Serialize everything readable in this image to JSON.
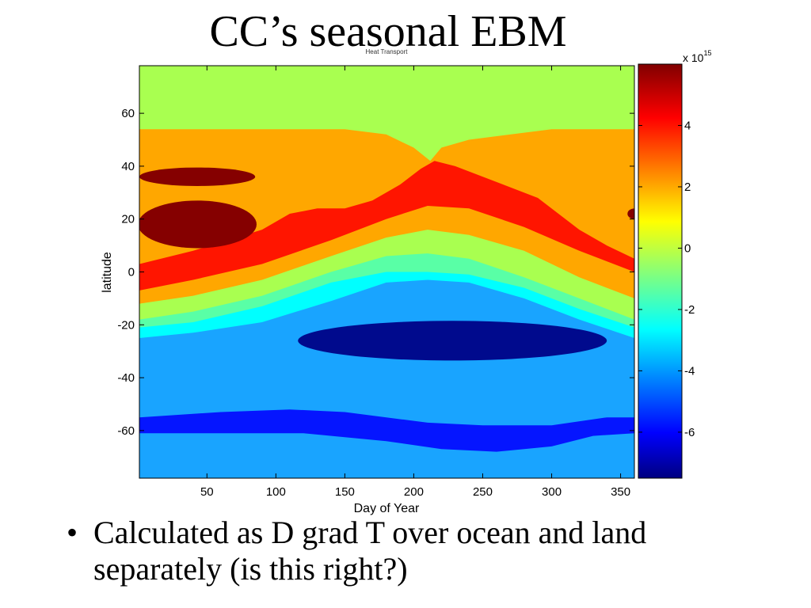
{
  "slide": {
    "title": "CC’s seasonal EBM",
    "bullet_char": "•",
    "bullets": [
      "Calculated as D grad T over ocean and land separately (is this right?)"
    ]
  },
  "chart_data": {
    "type": "heatmap",
    "title": "Heat Transport",
    "xlabel": "Day of Year",
    "ylabel": "latitude",
    "xlim": [
      1,
      360
    ],
    "ylim": [
      -78,
      78
    ],
    "xticks": [
      50,
      100,
      150,
      200,
      250,
      300,
      350
    ],
    "yticks": [
      -60,
      -40,
      -20,
      0,
      20,
      40,
      60
    ],
    "colorbar": {
      "range": [
        -7.5,
        6
      ],
      "ticks": [
        -6,
        -4,
        -2,
        0,
        2,
        4
      ],
      "exponent_label": "x 10",
      "exponent": "15",
      "colormap": "jet"
    },
    "bands": [
      {
        "level": 0.75,
        "color": "#a9ff50",
        "boundary": [
          [
            1,
            66
          ],
          [
            360,
            66
          ]
        ]
      },
      {
        "level": 2.75,
        "color": "#ffa700",
        "boundary": [
          [
            1,
            54
          ],
          [
            100,
            54
          ],
          [
            150,
            54
          ],
          [
            180,
            52
          ],
          [
            200,
            47
          ],
          [
            212,
            42
          ],
          [
            220,
            47
          ],
          [
            240,
            50
          ],
          [
            300,
            54
          ],
          [
            360,
            54
          ]
        ]
      },
      {
        "level": 4.25,
        "color": "#ff1500",
        "boundary": [
          [
            1,
            3
          ],
          [
            40,
            8
          ],
          [
            90,
            16
          ],
          [
            110,
            22
          ],
          [
            130,
            24
          ],
          [
            150,
            24
          ],
          [
            170,
            27
          ],
          [
            190,
            33
          ],
          [
            205,
            39
          ],
          [
            215,
            42
          ],
          [
            230,
            40
          ],
          [
            260,
            34
          ],
          [
            290,
            28
          ],
          [
            320,
            16
          ],
          [
            340,
            10
          ],
          [
            360,
            5
          ]
        ]
      },
      {
        "level": 1.75,
        "color": "#ffa700",
        "boundary": [
          [
            1,
            -7
          ],
          [
            40,
            -3
          ],
          [
            90,
            3
          ],
          [
            140,
            12
          ],
          [
            180,
            20
          ],
          [
            210,
            25
          ],
          [
            240,
            24
          ],
          [
            280,
            17
          ],
          [
            320,
            8
          ],
          [
            360,
            0
          ]
        ]
      },
      {
        "level": 0.25,
        "color": "#a9ff50",
        "boundary": [
          [
            1,
            -12
          ],
          [
            40,
            -9
          ],
          [
            90,
            -3
          ],
          [
            140,
            6
          ],
          [
            180,
            13
          ],
          [
            210,
            16
          ],
          [
            240,
            14
          ],
          [
            280,
            8
          ],
          [
            320,
            -2
          ],
          [
            360,
            -10
          ]
        ]
      },
      {
        "level": -1.25,
        "color": "#59ffa6",
        "boundary": [
          [
            1,
            -18
          ],
          [
            40,
            -15
          ],
          [
            90,
            -9
          ],
          [
            140,
            0
          ],
          [
            180,
            6
          ],
          [
            210,
            7
          ],
          [
            240,
            5
          ],
          [
            280,
            -2
          ],
          [
            320,
            -10
          ],
          [
            360,
            -18
          ]
        ]
      },
      {
        "level": -2.5,
        "color": "#00ffff",
        "boundary": [
          [
            1,
            -21
          ],
          [
            40,
            -19
          ],
          [
            90,
            -13
          ],
          [
            140,
            -4
          ],
          [
            180,
            0
          ],
          [
            210,
            0
          ],
          [
            240,
            -1
          ],
          [
            280,
            -6
          ],
          [
            320,
            -14
          ],
          [
            360,
            -21
          ]
        ]
      },
      {
        "level": -3.5,
        "color": "#19a4ff",
        "boundary": [
          [
            1,
            -25
          ],
          [
            40,
            -23
          ],
          [
            90,
            -19
          ],
          [
            140,
            -11
          ],
          [
            180,
            -4
          ],
          [
            210,
            -3
          ],
          [
            240,
            -4
          ],
          [
            280,
            -10
          ],
          [
            320,
            -18
          ],
          [
            360,
            -25
          ]
        ]
      },
      {
        "level": -5.25,
        "color": "#0515ff",
        "boundary": [
          [
            1,
            -55
          ],
          [
            60,
            -53
          ],
          [
            110,
            -52
          ],
          [
            150,
            -53
          ],
          [
            210,
            -57
          ],
          [
            250,
            -58
          ],
          [
            300,
            -58
          ],
          [
            340,
            -55
          ],
          [
            360,
            -55
          ]
        ]
      },
      {
        "level": -4.25,
        "color": "#19a4ff",
        "boundary": [
          [
            1,
            -61
          ],
          [
            60,
            -61
          ],
          [
            120,
            -61
          ],
          [
            180,
            -64
          ],
          [
            220,
            -67
          ],
          [
            260,
            -68
          ],
          [
            300,
            -66
          ],
          [
            330,
            -62
          ],
          [
            360,
            -61
          ]
        ]
      },
      {
        "level": -2.75,
        "color": "#3affd2",
        "boundary": [
          [
            1,
            -78
          ],
          [
            360,
            -78
          ]
        ]
      }
    ],
    "patches": [
      {
        "level": 5.5,
        "color": "#850000",
        "center": [
          43,
          36
        ],
        "radius": [
          42,
          3.5
        ]
      },
      {
        "level": 5.5,
        "color": "#850000",
        "center": [
          43,
          18
        ],
        "radius": [
          43,
          9
        ]
      },
      {
        "level": 5.5,
        "color": "#850000",
        "center": [
          360,
          22
        ],
        "radius": [
          5,
          2
        ]
      },
      {
        "level": -6.75,
        "color": "#000a8d",
        "center": [
          228,
          -26
        ],
        "radius": [
          112,
          7.5
        ]
      }
    ]
  }
}
